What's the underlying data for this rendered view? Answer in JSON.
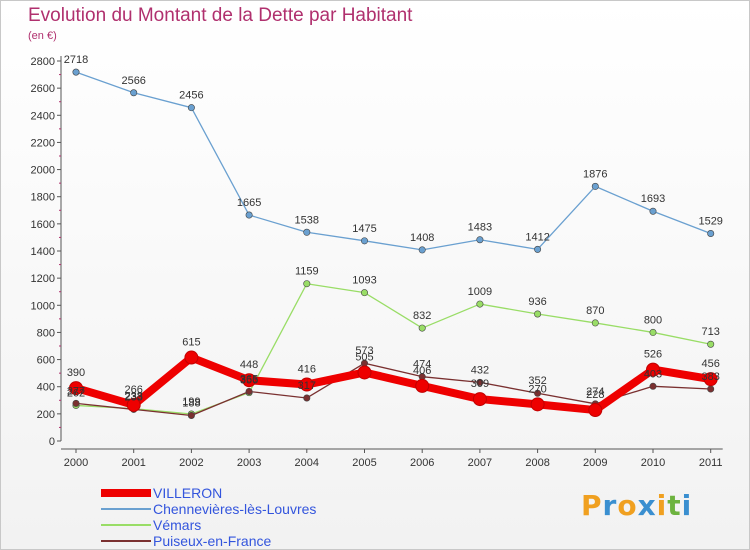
{
  "header": {
    "title": "Evolution du Montant de la Dette par Habitant",
    "unit": "(en €)"
  },
  "logo": {
    "text": "Proxiti",
    "letters": [
      "P",
      "r",
      "o",
      "x",
      "i",
      "t",
      "i"
    ],
    "colors": [
      "#f0a020",
      "#3a8fd0",
      "#f0a020",
      "#3a8fd0",
      "#f0a020",
      "#6db33f",
      "#3a8fd0"
    ]
  },
  "chart_data": {
    "type": "line",
    "title": "Evolution du Montant de la Dette par Habitant",
    "subtitle": "(en €)",
    "x": [
      "2000",
      "2001",
      "2002",
      "2003",
      "2004",
      "2005",
      "2006",
      "2007",
      "2008",
      "2009",
      "2010",
      "2011"
    ],
    "ylim": [
      0,
      2800
    ],
    "yticks": [
      0,
      200,
      400,
      600,
      800,
      1000,
      1200,
      1400,
      1600,
      1800,
      2000,
      2200,
      2400,
      2600,
      2800
    ],
    "grid": false,
    "legend_position": "bottom-left",
    "series": [
      {
        "name": "VILLERON",
        "color": "#ee0000",
        "values": [
          390,
          266,
          615,
          448,
          416,
          505,
          406,
          309,
          270,
          228,
          526,
          456
        ]
      },
      {
        "name": "Chennevières-lès-Louvres",
        "color": "#6aa0d0",
        "values": [
          2718,
          2566,
          2456,
          1665,
          1538,
          1475,
          1408,
          1483,
          1412,
          1876,
          1693,
          1529
        ]
      },
      {
        "name": "Vémars",
        "color": "#99dd66",
        "values": [
          262,
          238,
          199,
          356,
          1159,
          1093,
          832,
          1009,
          936,
          870,
          800,
          713
        ]
      },
      {
        "name": "Puiseux-en-France",
        "color": "#7a3030",
        "values": [
          277,
          233,
          188,
          365,
          317,
          573,
          474,
          432,
          352,
          274,
          403,
          383
        ]
      }
    ]
  }
}
